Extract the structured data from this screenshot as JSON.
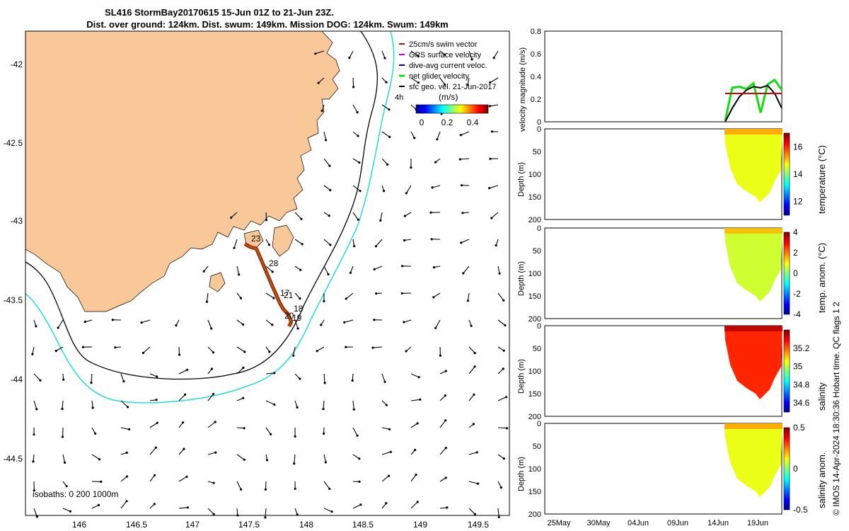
{
  "title": {
    "line1": "SL416 StormBay20170615 15-Jun 01Z to 21-Jun 23Z.",
    "line2": "Dist. over ground: 124km. Dist. swum: 149km. Mission DOG: 124km. Swum: 149km"
  },
  "colors": {
    "land": "#f9c898",
    "isobath_200": "#000000",
    "isobath_1000": "#22dddd",
    "track": "#dd0000",
    "net_velocity": "#11dd11",
    "sfc_geo": "#000000"
  },
  "chart_data": [
    {
      "type": "map",
      "x_ticks": [
        "146",
        "146.5",
        "147",
        "147.5",
        "148",
        "148.5",
        "149",
        "149.5"
      ],
      "y_ticks": [
        "-42",
        "-42.5",
        "-43",
        "-43.5",
        "-44",
        "-44.5"
      ],
      "xlim": [
        145.55,
        149.7
      ],
      "ylim": [
        -44.85,
        -41.8
      ],
      "legend": [
        {
          "label": "25cm/s swim vector",
          "color": "#dd0000"
        },
        {
          "label": "GPS surface velocity",
          "color": "#cc00cc"
        },
        {
          "label": "dive-avg current veloc.",
          "color": "#0000cc"
        },
        {
          "label": "net glider velocity",
          "color": "#11dd11"
        },
        {
          "label": "sfc geo. vel. 21-Jun-2017",
          "color": "#000000"
        }
      ],
      "legend_extra": "4h",
      "colorbar": {
        "label": "(m/s)",
        "ticks": [
          "0",
          "0.2",
          "0.4"
        ],
        "range": [
          0,
          0.5
        ]
      },
      "track_labels": [
        "23",
        "28",
        "17",
        "21",
        "18",
        "20",
        "19"
      ],
      "isobath_note": "isobaths: 0   200  1000m",
      "track": [
        [
          147.43,
          -43.14
        ],
        [
          147.48,
          -43.16
        ],
        [
          147.53,
          -43.17
        ],
        [
          147.56,
          -43.22
        ],
        [
          147.6,
          -43.29
        ],
        [
          147.64,
          -43.36
        ],
        [
          147.67,
          -43.41
        ],
        [
          147.7,
          -43.46
        ],
        [
          147.73,
          -43.51
        ],
        [
          147.76,
          -43.55
        ],
        [
          147.8,
          -43.58
        ],
        [
          147.83,
          -43.63
        ],
        [
          147.81,
          -43.66
        ]
      ]
    },
    {
      "type": "line",
      "ylabel": "velocity magnitude (m/s)",
      "ylim": [
        0,
        0.8
      ],
      "y_ticks": [
        "0",
        "0.2",
        "0.4",
        "0.6",
        "0.8"
      ],
      "x": [
        "14-Jun",
        "15-Jun",
        "16-Jun",
        "17-Jun",
        "18-Jun",
        "19-Jun",
        "20-Jun",
        "21-Jun",
        "22-Jun"
      ],
      "series": [
        {
          "color": "#11dd11",
          "values": [
            0.01,
            0.3,
            0.31,
            0.29,
            0.34,
            0.08,
            0.33,
            0.37,
            0.28
          ]
        },
        {
          "color": "#000000",
          "values": [
            0.0,
            0.12,
            0.22,
            0.28,
            0.31,
            0.3,
            0.32,
            0.25,
            0.12
          ]
        },
        {
          "color": "#dd0000",
          "values": [
            0.25,
            0.25,
            0.25,
            0.25,
            0.25,
            0.25,
            0.25,
            0.25,
            0.25
          ]
        }
      ]
    },
    {
      "type": "heatmap",
      "ylabel": "Depth (m)",
      "clabel": "temperature (°C)",
      "y_ticks": [
        "0",
        "50",
        "100",
        "150",
        "200"
      ],
      "c_ticks": [
        "12",
        "14",
        "16"
      ],
      "clim": [
        11,
        17
      ],
      "value": 14.6
    },
    {
      "type": "heatmap",
      "ylabel": "Depth (m)",
      "clabel": "temp. anom. (°C)",
      "y_ticks": [
        "0",
        "50",
        "100",
        "150",
        "200"
      ],
      "c_ticks": [
        "-4",
        "-2",
        "0",
        "2",
        "4"
      ],
      "clim": [
        -4,
        4
      ],
      "value": 0.6
    },
    {
      "type": "heatmap",
      "ylabel": "Depth (m)",
      "clabel": "salinity",
      "y_ticks": [
        "0",
        "50",
        "100",
        "150",
        "200"
      ],
      "c_ticks": [
        "34.6",
        "34.8",
        "35",
        "35.2"
      ],
      "clim": [
        34.5,
        35.4
      ],
      "value": 35.25
    },
    {
      "type": "heatmap",
      "ylabel": "Depth (m)",
      "clabel": "salinity anom.",
      "y_ticks": [
        "0",
        "50",
        "100",
        "150",
        "200"
      ],
      "c_ticks": [
        "-0.5",
        "0",
        "0.5"
      ],
      "clim": [
        -0.5,
        0.5
      ],
      "value": 0.1
    }
  ],
  "time_axis": [
    "25May",
    "30May",
    "04Jun",
    "09Jun",
    "14Jun",
    "19Jun"
  ],
  "credit": "© IMOS 14-Apr-2024 18:30:36 Hobart time. QC flags 1  2"
}
